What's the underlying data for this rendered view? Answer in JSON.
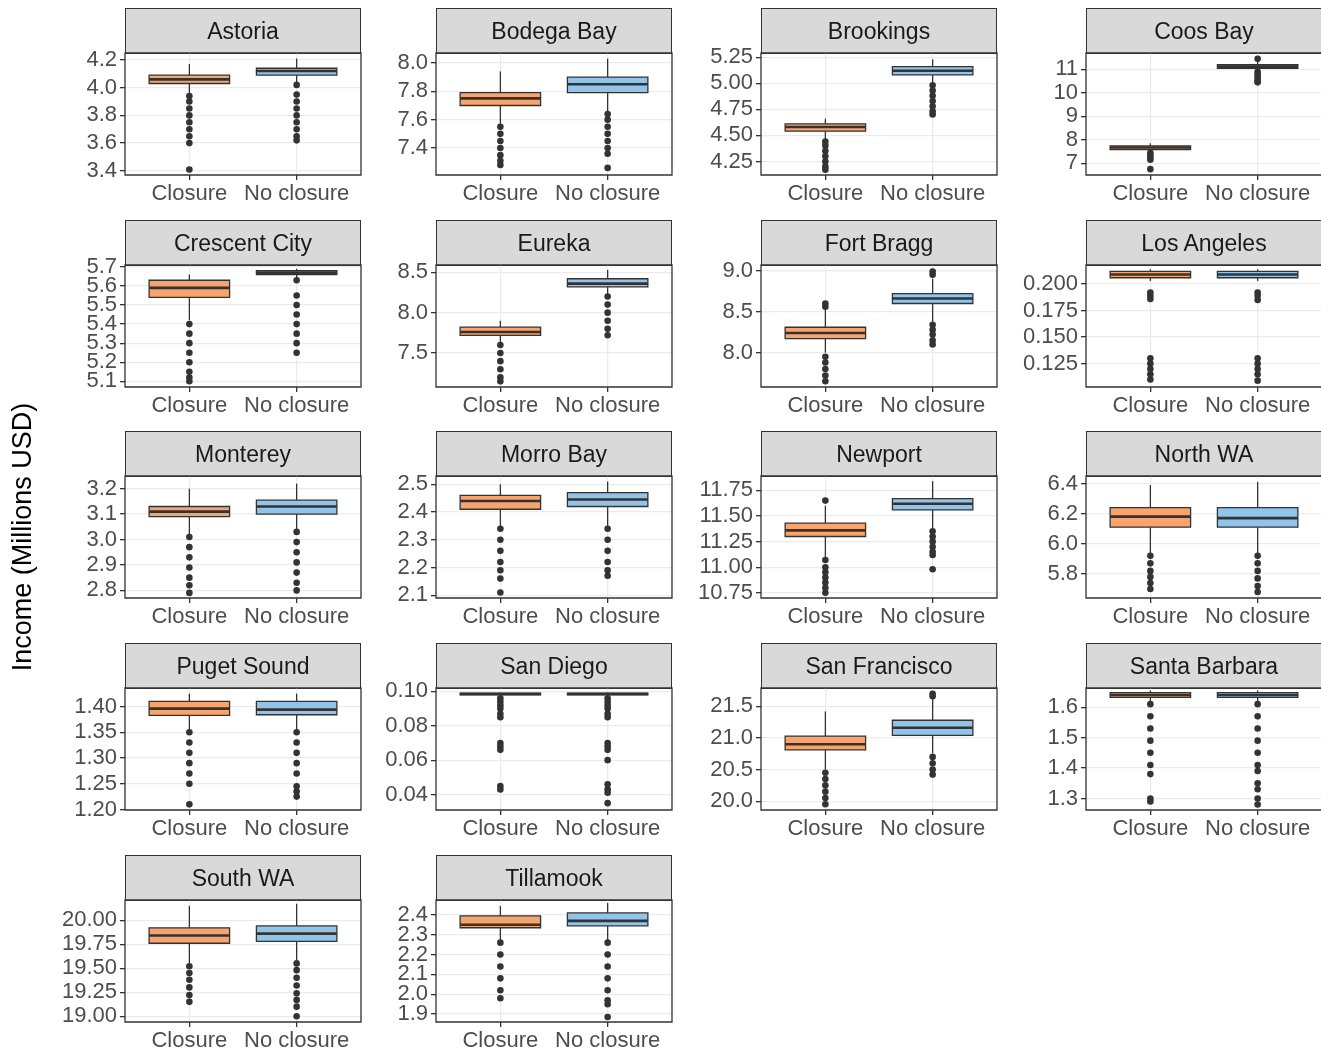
{
  "chart_data": [
    {
      "type": "box",
      "title": "Astoria",
      "categories": [
        "Closure",
        "No closure"
      ],
      "colors": [
        "#f7a46f",
        "#91c4e8"
      ],
      "boxes": [
        {
          "low": 3.95,
          "q1": 4.03,
          "median": 4.06,
          "q3": 4.09,
          "high": 4.17,
          "outliers": [
            3.94,
            3.9,
            3.85,
            3.8,
            3.75,
            3.7,
            3.65,
            3.6,
            3.41
          ]
        },
        {
          "low": 4.03,
          "q1": 4.09,
          "median": 4.12,
          "q3": 4.14,
          "high": 4.21,
          "outliers": [
            4.02,
            3.95,
            3.9,
            3.85,
            3.8,
            3.75,
            3.7,
            3.65,
            3.62
          ]
        }
      ],
      "ylim": [
        3.37,
        4.25
      ],
      "yticks": [
        3.4,
        3.6,
        3.8,
        {
          "value": 4,
          "label": "4.0"
        },
        4.2
      ],
      "grid": true
    },
    {
      "type": "box",
      "title": "Bodega Bay",
      "categories": [
        "Closure",
        "No closure"
      ],
      "colors": [
        "#f7a46f",
        "#91c4e8"
      ],
      "boxes": [
        {
          "low": 7.57,
          "q1": 7.7,
          "median": 7.75,
          "q3": 7.79,
          "high": 7.94,
          "outliers": [
            7.55,
            7.5,
            7.45,
            7.4,
            7.35,
            7.31,
            7.28
          ]
        },
        {
          "low": 7.66,
          "q1": 7.79,
          "median": 7.85,
          "q3": 7.9,
          "high": 8.03,
          "outliers": [
            7.64,
            7.6,
            7.55,
            7.5,
            7.45,
            7.4,
            7.36,
            7.26
          ]
        }
      ],
      "ylim": [
        7.21,
        8.07
      ],
      "yticks": [
        7.4,
        7.6,
        7.8,
        {
          "value": 8,
          "label": "8.0"
        }
      ],
      "grid": true
    },
    {
      "type": "box",
      "title": "Brookings",
      "categories": [
        "Closure",
        "No closure"
      ],
      "colors": [
        "#f7a46f",
        "#91c4e8"
      ],
      "boxes": [
        {
          "low": 4.46,
          "q1": 4.54,
          "median": 4.58,
          "q3": 4.61,
          "high": 4.66,
          "outliers": [
            4.44,
            4.4,
            4.35,
            4.3,
            4.25,
            4.2,
            4.17
          ]
        },
        {
          "low": 5,
          "q1": 5.08,
          "median": 5.12,
          "q3": 5.16,
          "high": 5.23,
          "outliers": [
            4.98,
            4.93,
            4.88,
            4.83,
            4.78,
            4.73,
            4.7
          ]
        }
      ],
      "ylim": [
        4.12,
        5.29
      ],
      "yticks": [
        4.25,
        {
          "value": 4.5,
          "label": "4.50"
        },
        4.75,
        {
          "value": 5,
          "label": "5.00"
        },
        5.25
      ],
      "grid": true
    },
    {
      "type": "box",
      "title": "Coos Bay",
      "categories": [
        "Closure",
        "No closure"
      ],
      "colors": [
        "#f7a46f",
        "#91c4e8"
      ],
      "boxes": [
        {
          "low": 7.5,
          "q1": 7.58,
          "median": 7.67,
          "q3": 7.74,
          "high": 7.85,
          "outliers": [
            7.45,
            7.35,
            7.25,
            7.15,
            6.75
          ]
        },
        {
          "low": 10.95,
          "q1": 11.05,
          "median": 11.12,
          "q3": 11.2,
          "high": 11.35,
          "outliers": [
            11.45,
            10.9,
            10.8,
            10.7,
            10.6,
            10.5,
            10.45
          ]
        }
      ],
      "ylim": [
        6.5,
        11.7
      ],
      "yticks": [
        7,
        8,
        9,
        10,
        11
      ],
      "grid": true
    },
    {
      "type": "box",
      "title": "Crescent City",
      "categories": [
        "Closure",
        "No closure"
      ],
      "colors": [
        "#f7a46f",
        "#91c4e8"
      ],
      "boxes": [
        {
          "low": 5.42,
          "q1": 5.54,
          "median": 5.59,
          "q3": 5.63,
          "high": 5.66,
          "outliers": [
            5.4,
            5.35,
            5.3,
            5.25,
            5.2,
            5.15,
            5.12,
            5.1
          ]
        },
        {
          "low": 5.64,
          "q1": 5.66,
          "median": 5.67,
          "q3": 5.68,
          "high": 5.69,
          "outliers": [
            5.63,
            5.55,
            5.5,
            5.45,
            5.4,
            5.35,
            5.3,
            5.25
          ]
        }
      ],
      "ylim": [
        5.07,
        5.71
      ],
      "yticks": [
        5.1,
        5.2,
        5.3,
        5.4,
        5.5,
        5.6,
        5.7
      ],
      "grid": true
    },
    {
      "type": "box",
      "title": "Eureka",
      "categories": [
        "Closure",
        "No closure"
      ],
      "colors": [
        "#f7a46f",
        "#91c4e8"
      ],
      "boxes": [
        {
          "low": 7.62,
          "q1": 7.72,
          "median": 7.76,
          "q3": 7.82,
          "high": 7.9,
          "outliers": [
            7.6,
            7.5,
            7.4,
            7.3,
            7.2,
            7.15
          ]
        },
        {
          "low": 8.22,
          "q1": 8.32,
          "median": 8.36,
          "q3": 8.42,
          "high": 8.53,
          "outliers": [
            8.2,
            8.1,
            8,
            7.9,
            7.8,
            7.72
          ]
        }
      ],
      "ylim": [
        7.08,
        8.59
      ],
      "yticks": [
        7.5,
        {
          "value": 8,
          "label": "8.0"
        },
        8.5
      ],
      "grid": true
    },
    {
      "type": "box",
      "title": "Fort Bragg",
      "categories": [
        "Closure",
        "No closure"
      ],
      "colors": [
        "#f7a46f",
        "#91c4e8"
      ],
      "boxes": [
        {
          "low": 8,
          "q1": 8.17,
          "median": 8.24,
          "q3": 8.31,
          "high": 8.52,
          "outliers": [
            8.56,
            8.6,
            7.95,
            7.88,
            7.8,
            7.72,
            7.65
          ]
        },
        {
          "low": 8.38,
          "q1": 8.6,
          "median": 8.66,
          "q3": 8.72,
          "high": 8.9,
          "outliers": [
            8.95,
            8.99,
            8.34,
            8.28,
            8.22,
            8.15,
            8.1
          ]
        }
      ],
      "ylim": [
        7.58,
        9.07
      ],
      "yticks": [
        {
          "value": 8,
          "label": "8.0"
        },
        8.5,
        {
          "value": 9,
          "label": "9.0"
        }
      ],
      "grid": true
    },
    {
      "type": "box",
      "title": "Los Angeles",
      "categories": [
        "Closure",
        "No closure"
      ],
      "colors": [
        "#f7a46f",
        "#91c4e8"
      ],
      "boxes": [
        {
          "low": 0.203,
          "q1": 0.206,
          "median": 0.209,
          "q3": 0.212,
          "high": 0.214,
          "outliers": [
            0.192,
            0.189,
            0.186,
            0.13,
            0.125,
            0.12,
            0.115,
            0.11
          ]
        },
        {
          "low": 0.203,
          "q1": 0.206,
          "median": 0.209,
          "q3": 0.212,
          "high": 0.214,
          "outliers": [
            0.192,
            0.189,
            0.185,
            0.13,
            0.125,
            0.12,
            0.115,
            0.109
          ]
        }
      ],
      "ylim": [
        0.103,
        0.218
      ],
      "yticks": [
        0.125,
        {
          "value": 0.15,
          "label": "0.150"
        },
        0.175,
        {
          "value": 0.2,
          "label": "0.200"
        }
      ],
      "grid": true
    },
    {
      "type": "box",
      "title": "Monterey",
      "ylabel": "Income (Millions USD)",
      "categories": [
        "Closure",
        "No closure"
      ],
      "colors": [
        "#f7a46f",
        "#91c4e8"
      ],
      "boxes": [
        {
          "low": 3.02,
          "q1": 3.09,
          "median": 3.11,
          "q3": 3.13,
          "high": 3.2,
          "outliers": [
            3.01,
            2.97,
            2.93,
            2.89,
            2.85,
            2.82,
            2.79
          ]
        },
        {
          "low": 3.04,
          "q1": 3.1,
          "median": 3.13,
          "q3": 3.155,
          "high": 3.22,
          "outliers": [
            3.03,
            2.99,
            2.95,
            2.91,
            2.87,
            2.83,
            2.8
          ]
        }
      ],
      "ylim": [
        2.77,
        3.25
      ],
      "yticks": [
        2.8,
        2.9,
        {
          "value": 3,
          "label": "3.0"
        },
        3.1,
        3.2
      ],
      "grid": true
    },
    {
      "type": "box",
      "title": "Morro Bay",
      "categories": [
        "Closure",
        "No closure"
      ],
      "colors": [
        "#f7a46f",
        "#91c4e8"
      ],
      "boxes": [
        {
          "low": 2.35,
          "q1": 2.41,
          "median": 2.44,
          "q3": 2.46,
          "high": 2.5,
          "outliers": [
            2.34,
            2.3,
            2.26,
            2.22,
            2.19,
            2.16,
            2.11
          ]
        },
        {
          "low": 2.35,
          "q1": 2.42,
          "median": 2.445,
          "q3": 2.47,
          "high": 2.51,
          "outliers": [
            2.34,
            2.3,
            2.26,
            2.22,
            2.19,
            2.17
          ]
        }
      ],
      "ylim": [
        2.09,
        2.53
      ],
      "yticks": [
        2.1,
        2.2,
        2.3,
        2.4,
        2.5
      ],
      "grid": true
    },
    {
      "type": "box",
      "title": "Newport",
      "categories": [
        "Closure",
        "No closure"
      ],
      "colors": [
        "#f7a46f",
        "#91c4e8"
      ],
      "boxes": [
        {
          "low": 11.1,
          "q1": 11.3,
          "median": 11.36,
          "q3": 11.43,
          "high": 11.6,
          "outliers": [
            11.65,
            11.07,
            11,
            10.95,
            10.9,
            10.85,
            10.8,
            10.75
          ]
        },
        {
          "low": 11.38,
          "q1": 11.56,
          "median": 11.62,
          "q3": 11.67,
          "high": 11.84,
          "outliers": [
            11.35,
            11.3,
            11.25,
            11.2,
            11.15,
            11.12,
            10.98
          ]
        }
      ],
      "ylim": [
        10.7,
        11.89
      ],
      "yticks": [
        10.75,
        {
          "value": 11,
          "label": "11.00"
        },
        11.25,
        {
          "value": 11.5,
          "label": "11.50"
        },
        11.75
      ],
      "grid": true
    },
    {
      "type": "box",
      "title": "North WA",
      "categories": [
        "Closure",
        "No closure"
      ],
      "colors": [
        "#f7a46f",
        "#91c4e8"
      ],
      "boxes": [
        {
          "low": 5.93,
          "q1": 6.11,
          "median": 6.18,
          "q3": 6.24,
          "high": 6.39,
          "outliers": [
            5.92,
            5.87,
            5.82,
            5.78,
            5.74,
            5.7
          ]
        },
        {
          "low": 5.93,
          "q1": 6.11,
          "median": 6.17,
          "q3": 6.24,
          "high": 6.41,
          "outliers": [
            5.92,
            5.87,
            5.82,
            5.77,
            5.72,
            5.68
          ]
        }
      ],
      "ylim": [
        5.64,
        6.45
      ],
      "yticks": [
        5.8,
        {
          "value": 6,
          "label": "6.0"
        },
        6.2,
        6.4
      ],
      "grid": true
    },
    {
      "type": "box",
      "title": "Puget Sound",
      "categories": [
        "Closure",
        "No closure"
      ],
      "colors": [
        "#f7a46f",
        "#91c4e8"
      ],
      "boxes": [
        {
          "low": 1.355,
          "q1": 1.383,
          "median": 1.396,
          "q3": 1.41,
          "high": 1.425,
          "outliers": [
            1.35,
            1.33,
            1.31,
            1.29,
            1.27,
            1.25,
            1.21
          ]
        },
        {
          "low": 1.355,
          "q1": 1.384,
          "median": 1.394,
          "q3": 1.41,
          "high": 1.425,
          "outliers": [
            1.35,
            1.33,
            1.31,
            1.29,
            1.27,
            1.245,
            1.235,
            1.225
          ]
        }
      ],
      "ylim": [
        1.199,
        1.436
      ],
      "yticks": [
        {
          "value": 1.2,
          "label": "1.20"
        },
        1.25,
        {
          "value": 1.3,
          "label": "1.30"
        },
        1.35,
        {
          "value": 1.4,
          "label": "1.40"
        }
      ],
      "grid": true
    },
    {
      "type": "box",
      "title": "San Diego",
      "categories": [
        "Closure",
        "No closure"
      ],
      "colors": [
        "#f7a46f",
        "#91c4e8"
      ],
      "boxes": [
        {
          "low": 0.0975,
          "q1": 0.098,
          "median": 0.0985,
          "q3": 0.099,
          "high": 0.0993,
          "outliers": [
            0.096,
            0.094,
            0.092,
            0.09,
            0.087,
            0.085,
            0.07,
            0.068,
            0.066,
            0.045,
            0.043
          ]
        },
        {
          "low": 0.0975,
          "q1": 0.098,
          "median": 0.0985,
          "q3": 0.099,
          "high": 0.0993,
          "outliers": [
            0.096,
            0.094,
            0.092,
            0.09,
            0.087,
            0.085,
            0.07,
            0.068,
            0.066,
            0.06,
            0.046,
            0.043,
            0.041,
            0.035
          ]
        }
      ],
      "ylim": [
        0.031,
        0.102
      ],
      "yticks": [
        0.04,
        0.06,
        0.08,
        {
          "value": 0.1,
          "label": "0.10"
        }
      ],
      "grid": true
    },
    {
      "type": "box",
      "title": "San Francisco",
      "categories": [
        "Closure",
        "No closure"
      ],
      "colors": [
        "#f7a46f",
        "#91c4e8"
      ],
      "boxes": [
        {
          "low": 20.5,
          "q1": 20.81,
          "median": 20.9,
          "q3": 21.03,
          "high": 21.42,
          "outliers": [
            20.45,
            20.35,
            20.25,
            20.15,
            20.05,
            19.95
          ]
        },
        {
          "low": 20.76,
          "q1": 21.04,
          "median": 21.16,
          "q3": 21.28,
          "high": 21.62,
          "outliers": [
            21.66,
            21.7,
            20.7,
            20.6,
            20.5,
            20.42
          ]
        }
      ],
      "ylim": [
        19.86,
        21.79
      ],
      "yticks": [
        {
          "value": 20,
          "label": "20.0"
        },
        20.5,
        {
          "value": 21,
          "label": "21.0"
        },
        21.5
      ],
      "grid": true
    },
    {
      "type": "box",
      "title": "Santa Barbara",
      "categories": [
        "Closure",
        "No closure"
      ],
      "colors": [
        "#f7a46f",
        "#91c4e8"
      ],
      "boxes": [
        {
          "low": 1.615,
          "q1": 1.632,
          "median": 1.64,
          "q3": 1.648,
          "high": 1.655,
          "outliers": [
            1.61,
            1.57,
            1.53,
            1.49,
            1.45,
            1.41,
            1.38,
            1.3,
            1.29
          ]
        },
        {
          "low": 1.615,
          "q1": 1.632,
          "median": 1.64,
          "q3": 1.648,
          "high": 1.655,
          "outliers": [
            1.61,
            1.57,
            1.53,
            1.49,
            1.45,
            1.41,
            1.39,
            1.35,
            1.33,
            1.3,
            1.28
          ]
        }
      ],
      "ylim": [
        1.262,
        1.663
      ],
      "yticks": [
        1.3,
        1.4,
        1.5,
        1.6
      ],
      "grid": true
    },
    {
      "type": "box",
      "title": "South WA",
      "categories": [
        "Closure",
        "No closure"
      ],
      "colors": [
        "#f7a46f",
        "#91c4e8"
      ],
      "boxes": [
        {
          "low": 19.55,
          "q1": 19.76,
          "median": 19.84,
          "q3": 19.92,
          "high": 20.15,
          "outliers": [
            19.52,
            19.45,
            19.38,
            19.3,
            19.22,
            19.15
          ]
        },
        {
          "low": 19.58,
          "q1": 19.78,
          "median": 19.86,
          "q3": 19.94,
          "high": 20.17,
          "outliers": [
            19.55,
            19.48,
            19.4,
            19.32,
            19.24,
            19.17,
            19.1,
            19
          ]
        }
      ],
      "ylim": [
        18.94,
        20.21
      ],
      "yticks": [
        {
          "value": 19,
          "label": "19.00"
        },
        19.25,
        {
          "value": 19.5,
          "label": "19.50"
        },
        19.75,
        {
          "value": 20,
          "label": "20.00"
        }
      ],
      "grid": true
    },
    {
      "type": "box",
      "title": "Tillamook",
      "categories": [
        "Closure",
        "No closure"
      ],
      "colors": [
        "#f7a46f",
        "#91c4e8"
      ],
      "boxes": [
        {
          "low": 2.27,
          "q1": 2.335,
          "median": 2.35,
          "q3": 2.395,
          "high": 2.445,
          "outliers": [
            2.26,
            2.2,
            2.14,
            2.08,
            2.02,
            1.98
          ]
        },
        {
          "low": 2.27,
          "q1": 2.345,
          "median": 2.37,
          "q3": 2.41,
          "high": 2.46,
          "outliers": [
            2.26,
            2.2,
            2.14,
            2.08,
            2.02,
            1.97,
            1.95,
            1.885
          ]
        }
      ],
      "ylim": [
        1.86,
        2.475
      ],
      "yticks": [
        1.9,
        {
          "value": 2,
          "label": "2.0"
        },
        2.1,
        2.2,
        2.3,
        2.4
      ],
      "grid": true
    }
  ]
}
